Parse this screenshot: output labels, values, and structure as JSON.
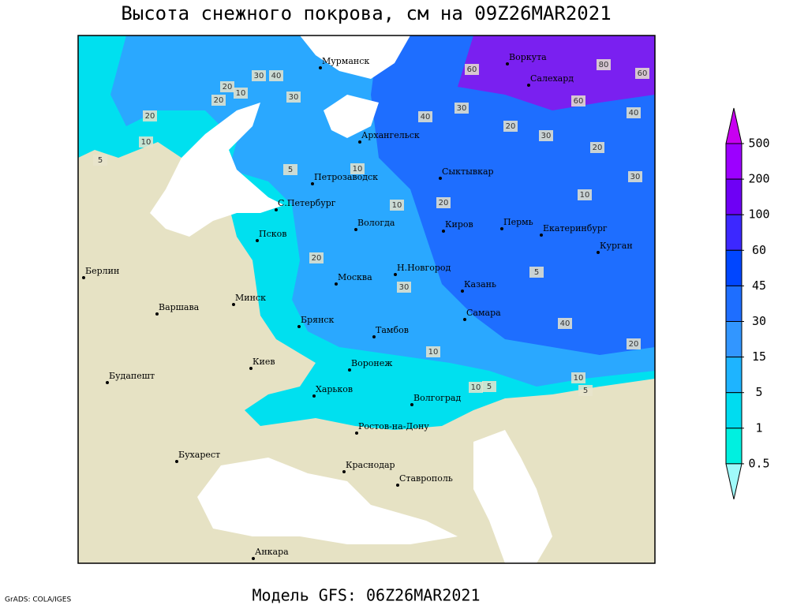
{
  "title": "Высота снежного покрова, см на 09Z26MAR2021",
  "footer": "Модель GFS: 06Z26MAR2021",
  "credit": "GrADS: COLA/IGES",
  "cities": [
    "Мурманск",
    "Воркута",
    "Салехард",
    "Архангельск",
    "Сыктывкар",
    "Петрозаводск",
    "С.Петербург",
    "Вологда",
    "Киров",
    "Пермь",
    "Екатеринбург",
    "Курган",
    "Псков",
    "Н.Новгород",
    "Казань",
    "Москва",
    "Берлин",
    "Варшава",
    "Минск",
    "Брянск",
    "Тамбов",
    "Самара",
    "Киев",
    "Воронеж",
    "Будапешт",
    "Харьков",
    "Волгоград",
    "Ростов-на-Дону",
    "Бухарест",
    "Краснодар",
    "Ставрополь",
    "Анкара"
  ],
  "contour_labels": [
    20,
    30,
    40,
    30,
    20,
    10,
    20,
    10,
    5,
    60,
    80,
    60,
    60,
    40,
    30,
    20,
    40,
    30,
    10,
    5,
    10,
    20,
    30,
    20,
    10,
    5,
    20,
    30,
    40,
    20,
    10,
    5,
    10,
    10,
    5
  ],
  "legend": {
    "levels": [
      500,
      200,
      100,
      60,
      45,
      30,
      15,
      5,
      1,
      0.5
    ],
    "colors": [
      "#c800f0",
      "#9c00ff",
      "#6e00f5",
      "#3c28ff",
      "#0046ff",
      "#1e6eff",
      "#3296ff",
      "#1eb4ff",
      "#00dcf0",
      "#00f0e0",
      "#a0fafa"
    ]
  }
}
